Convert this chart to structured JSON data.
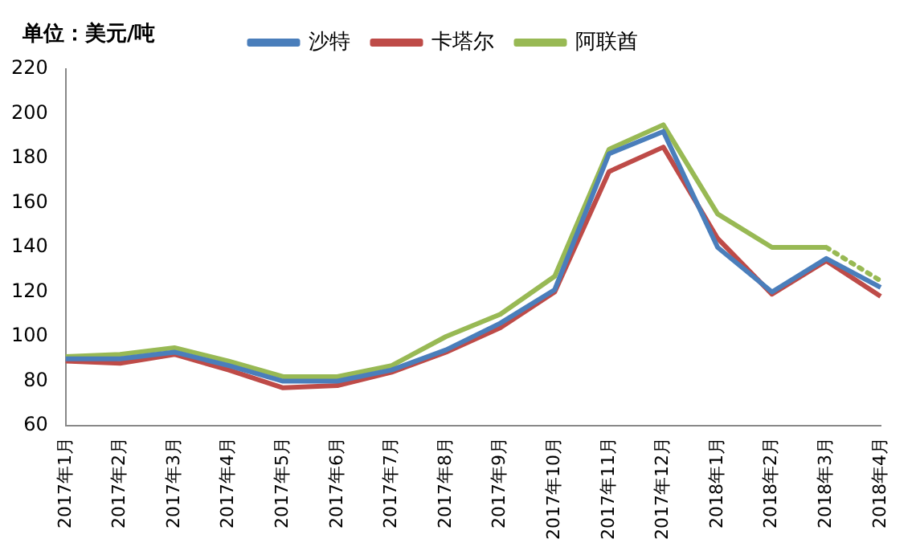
{
  "chart_data": {
    "type": "line",
    "ylabel": "单位：美元/吨",
    "categories": [
      "2017年1月",
      "2017年2月",
      "2017年3月",
      "2017年4月",
      "2017年5月",
      "2017年6月",
      "2017年7月",
      "2017年8月",
      "2017年9月",
      "2017年10月",
      "2017年11月",
      "2017年12月",
      "2018年1月",
      "2018年2月",
      "2018年3月",
      "2018年4月"
    ],
    "series": [
      {
        "name": "沙特",
        "color": "#4a7ebb",
        "values": [
          90,
          90,
          93,
          87,
          80,
          80,
          85,
          94,
          106,
          121,
          182,
          192,
          140,
          120,
          135,
          122
        ]
      },
      {
        "name": "卡塔尔",
        "color": "#be4b48",
        "values": [
          89,
          88,
          92,
          85,
          77,
          78,
          84,
          93,
          104,
          120,
          174,
          185,
          144,
          119,
          134,
          118
        ]
      },
      {
        "name": "阿联酋",
        "color": "#98b954",
        "values": [
          91,
          92,
          95,
          89,
          82,
          82,
          87,
          100,
          110,
          127,
          184,
          195,
          155,
          140,
          140,
          null
        ]
      },
      {
        "color": "#98b954",
        "line_style": "dotted",
        "values": [
          null,
          null,
          null,
          null,
          null,
          null,
          null,
          null,
          null,
          null,
          null,
          null,
          null,
          null,
          140,
          125
        ]
      }
    ],
    "ylim": [
      60,
      220
    ],
    "yticks": [
      60,
      80,
      100,
      120,
      140,
      160,
      180,
      200,
      220
    ],
    "grid": false,
    "legend": "top",
    "marker": "none",
    "line_style": "solid"
  }
}
